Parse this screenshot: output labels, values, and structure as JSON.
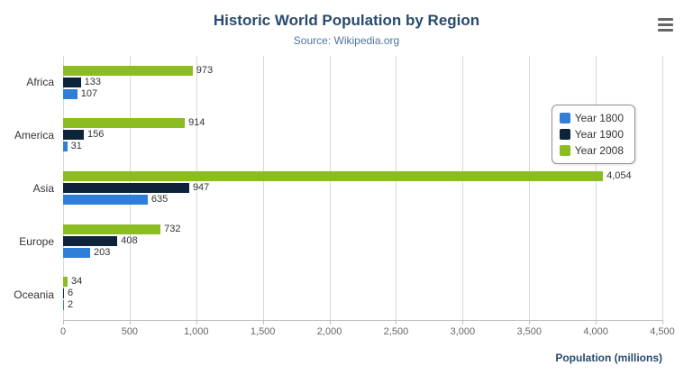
{
  "chart_data": {
    "type": "bar",
    "title": "Historic World Population by Region",
    "subtitle": "Source: Wikipedia.org",
    "xlabel": "Population (millions)",
    "categories": [
      "Africa",
      "America",
      "Asia",
      "Europe",
      "Oceania"
    ],
    "series": [
      {
        "name": "Year 1800",
        "color": "#2f7ed8",
        "values": [
          107,
          31,
          635,
          203,
          2
        ]
      },
      {
        "name": "Year 1900",
        "color": "#0d233a",
        "values": [
          133,
          156,
          947,
          408,
          6
        ]
      },
      {
        "name": "Year 2008",
        "color": "#8bbc21",
        "values": [
          973,
          914,
          4054,
          732,
          34
        ]
      }
    ],
    "bar_display_order_top_to_bottom": [
      "Year 2008",
      "Year 1900",
      "Year 1800"
    ],
    "xlim": [
      0,
      4500
    ],
    "xticks": [
      0,
      500,
      1000,
      1500,
      2000,
      2500,
      3000,
      3500,
      4000,
      4500
    ],
    "grid": true,
    "legend_position": "right"
  },
  "colors": {
    "title": "#274b6d",
    "subtitle": "#4d759e",
    "axis_title": "#274b6d",
    "gridline": "#d8d8d8"
  },
  "icons": {
    "export_menu": "hamburger-icon"
  }
}
